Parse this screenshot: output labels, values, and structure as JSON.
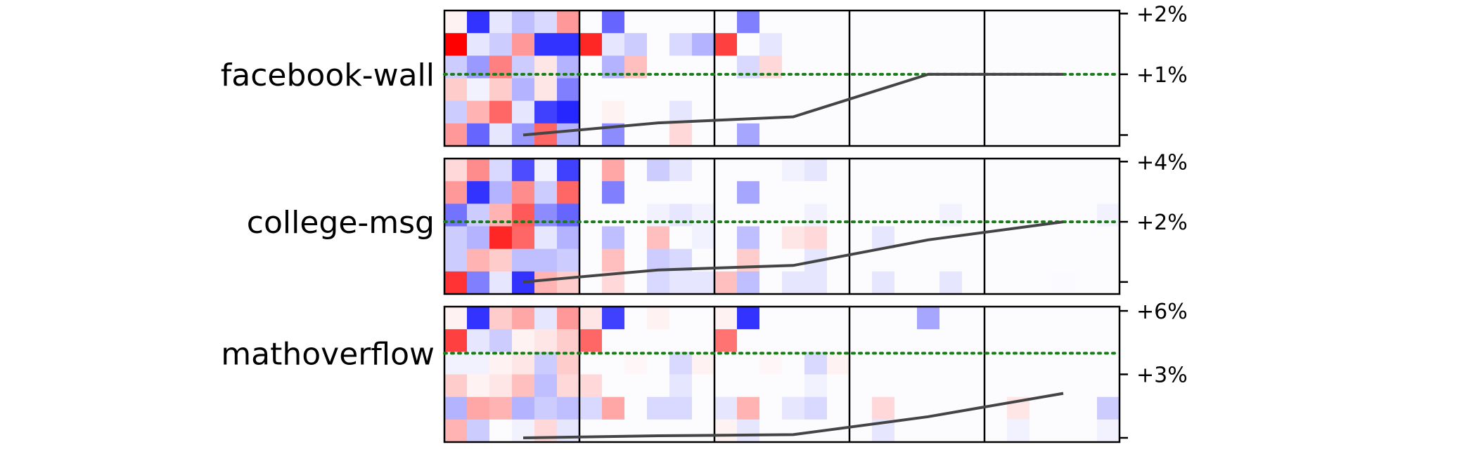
{
  "chart_data": {
    "type": "heatmap",
    "ylabel": "",
    "xlabel": "",
    "panel_count": 5,
    "heatmap_range": [
      -1,
      1
    ],
    "colors": {
      "positive": "#ff0000",
      "negative": "#0000ff",
      "trend": "#444444",
      "reference": "#1a7a1a"
    },
    "rows": [
      {
        "name": "facebook-wall",
        "y_ticks": [
          "+2%",
          "+1%",
          ""
        ],
        "y_tick_values": [
          2,
          1,
          0
        ],
        "ylim": [
          -0.18,
          2.05
        ],
        "reference_line": 1.0,
        "trend": [
          0.0,
          0.2,
          0.3,
          1.0,
          1.0
        ],
        "heatmaps": [
          [
            [
              0.05,
              -0.8,
              -0.1,
              -0.25,
              -0.15,
              0.4
            ],
            [
              1.0,
              -0.1,
              -0.2,
              0.4,
              -0.8,
              -0.8
            ],
            [
              -0.2,
              -0.4,
              0.5,
              -0.2,
              0.1,
              -0.3
            ],
            [
              0.2,
              -0.05,
              0.2,
              -0.3,
              0.1,
              -0.5
            ],
            [
              -0.2,
              0.3,
              0.6,
              -0.1,
              -0.75,
              -0.85
            ],
            [
              0.4,
              -0.6,
              -0.1,
              -0.4,
              0.6,
              -0.3
            ]
          ],
          [
            [
              0,
              -0.6,
              0,
              0,
              0,
              0
            ],
            [
              0.85,
              -0.1,
              -0.2,
              0,
              -0.15,
              -0.3
            ],
            [
              0,
              -0.3,
              0.25,
              0,
              0,
              0
            ],
            [
              0,
              0,
              0,
              0,
              0,
              0
            ],
            [
              0,
              0.05,
              0,
              0,
              -0.1,
              0
            ],
            [
              0,
              -0.45,
              0,
              0,
              0.15,
              0
            ]
          ],
          [
            [
              0,
              -0.5,
              0,
              0,
              0,
              0
            ],
            [
              0.75,
              0,
              -0.1,
              0,
              0,
              0
            ],
            [
              0,
              -0.15,
              0.15,
              0,
              0,
              0
            ],
            [
              0,
              0,
              0,
              0,
              0,
              0
            ],
            [
              0,
              0,
              0,
              0,
              0,
              0
            ],
            [
              0,
              -0.35,
              0,
              0,
              0,
              0
            ]
          ],
          [
            [
              0,
              0,
              0,
              0,
              0,
              0
            ],
            [
              0,
              0,
              0,
              0,
              0,
              0
            ],
            [
              0,
              0,
              0,
              0,
              0,
              0
            ],
            [
              0,
              0,
              0,
              0,
              0,
              0
            ],
            [
              0,
              0,
              0,
              0,
              0,
              0
            ],
            [
              0,
              0,
              0,
              0,
              0,
              0
            ]
          ],
          [
            [
              0,
              0,
              0,
              0,
              0,
              0
            ],
            [
              0,
              0,
              0,
              0,
              0,
              0
            ],
            [
              0,
              0,
              0,
              0,
              0,
              0
            ],
            [
              0,
              0,
              0,
              0,
              0,
              0
            ],
            [
              0,
              0,
              0,
              0,
              0,
              0
            ],
            [
              0,
              0,
              0,
              0,
              0,
              0
            ]
          ]
        ]
      },
      {
        "name": "college-msg",
        "y_ticks": [
          "+4%",
          "+2%",
          ""
        ],
        "y_tick_values": [
          4,
          2,
          0
        ],
        "ylim": [
          -0.4,
          4.1
        ],
        "reference_line": 2.0,
        "trend": [
          0.0,
          0.4,
          0.55,
          1.4,
          2.0
        ],
        "heatmaps": [
          [
            [
              0.15,
              0.45,
              -0.15,
              -0.7,
              -0.05,
              -0.75
            ],
            [
              0.4,
              -0.8,
              -0.3,
              0.45,
              -0.2,
              0.6
            ],
            [
              -0.55,
              -0.2,
              0.3,
              0.65,
              -0.45,
              -0.6
            ],
            [
              -0.2,
              -0.3,
              0.85,
              0.6,
              -0.1,
              -0.3
            ],
            [
              -0.2,
              0.3,
              0.2,
              -0.25,
              -0.25,
              -0.2
            ],
            [
              0.8,
              -0.5,
              -0.1,
              -0.8,
              0.3,
              0.2
            ]
          ],
          [
            [
              0,
              0.35,
              0,
              -0.2,
              -0.1,
              0
            ],
            [
              0,
              -0.5,
              0,
              0,
              0,
              0
            ],
            [
              0,
              0,
              0,
              -0.05,
              -0.1,
              -0.05
            ],
            [
              0,
              -0.25,
              0,
              0.25,
              0,
              -0.05
            ],
            [
              0,
              0.25,
              0,
              -0.2,
              -0.15,
              0
            ],
            [
              0,
              0.15,
              0,
              -0.15,
              -0.1,
              -0.1
            ]
          ],
          [
            [
              0,
              0,
              0,
              -0.05,
              -0.1,
              0
            ],
            [
              0,
              -0.35,
              0,
              0,
              0,
              0
            ],
            [
              0,
              0,
              0,
              0,
              -0.05,
              0
            ],
            [
              0,
              -0.25,
              0,
              0.1,
              0.15,
              0
            ],
            [
              0,
              0.2,
              0,
              0,
              -0.1,
              0
            ],
            [
              0.25,
              -0.25,
              0,
              -0.1,
              -0.1,
              0
            ]
          ],
          [
            [
              0,
              0,
              0,
              0,
              0,
              0
            ],
            [
              0,
              0,
              0,
              0,
              0,
              0
            ],
            [
              0,
              0,
              0,
              0,
              -0.05,
              0
            ],
            [
              0,
              -0.1,
              0,
              0,
              0,
              0
            ],
            [
              0,
              0,
              0,
              0,
              0,
              0
            ],
            [
              0,
              -0.1,
              0,
              0,
              -0.1,
              0
            ]
          ],
          [
            [
              0,
              0,
              0,
              0,
              0,
              0
            ],
            [
              0,
              0,
              0,
              0,
              0,
              0
            ],
            [
              0,
              0,
              0,
              0,
              0,
              -0.05
            ],
            [
              0,
              0,
              0,
              0,
              0,
              0
            ],
            [
              0,
              0,
              0,
              0,
              0,
              0
            ],
            [
              0,
              0,
              0,
              -0.02,
              0,
              0
            ]
          ]
        ]
      },
      {
        "name": "mathoverflow",
        "y_ticks": [
          "+6%",
          "+3%",
          ""
        ],
        "y_tick_values": [
          6,
          3,
          0
        ],
        "ylim": [
          -0.2,
          6.2
        ],
        "reference_line": 4.0,
        "trend": [
          0.0,
          0.1,
          0.15,
          1.0,
          2.1
        ],
        "heatmaps": [
          [
            [
              0.05,
              -0.8,
              0.2,
              0.35,
              -0.1,
              0.4
            ],
            [
              0.75,
              -0.1,
              -0.2,
              0.05,
              0.1,
              0.2
            ],
            [
              -0.05,
              -0.05,
              0.05,
              0.1,
              -0.2,
              0.2
            ],
            [
              0.2,
              0.05,
              0.1,
              0.25,
              -0.25,
              0.15
            ],
            [
              -0.3,
              0.35,
              0.3,
              -0.3,
              -0.2,
              -0.25
            ],
            [
              0.3,
              -0.2,
              0,
              -0.05,
              0.15,
              -0.1
            ]
          ],
          [
            [
              0.1,
              -0.75,
              0,
              0.05,
              0,
              0
            ],
            [
              0.6,
              0,
              0,
              0,
              0,
              0
            ],
            [
              0,
              0,
              0.03,
              0,
              -0.15,
              0.05
            ],
            [
              0.15,
              0,
              0,
              0,
              -0.1,
              0
            ],
            [
              -0.15,
              0.35,
              0,
              -0.15,
              -0.15,
              0
            ],
            [
              0,
              0,
              0,
              0,
              0,
              0
            ]
          ],
          [
            [
              0.05,
              -0.8,
              0,
              0,
              0,
              0
            ],
            [
              0.55,
              0,
              0,
              0,
              0,
              0
            ],
            [
              0,
              0,
              0.03,
              0,
              -0.15,
              0.05
            ],
            [
              0,
              0,
              0,
              0,
              -0.05,
              0
            ],
            [
              -0.1,
              0.3,
              0,
              -0.1,
              -0.15,
              0
            ],
            [
              0.05,
              -0.1,
              0,
              0,
              0,
              0
            ]
          ],
          [
            [
              0,
              0,
              0,
              -0.35,
              0,
              0
            ],
            [
              0,
              0,
              0,
              0,
              0,
              0
            ],
            [
              0,
              0,
              0,
              0,
              0,
              0
            ],
            [
              0,
              0,
              0,
              0,
              0,
              0
            ],
            [
              0,
              0.15,
              0,
              0,
              0,
              0
            ],
            [
              0,
              -0.1,
              0,
              0,
              0,
              0
            ]
          ],
          [
            [
              0,
              0,
              0,
              0,
              0,
              0
            ],
            [
              0,
              0,
              0,
              0,
              0,
              0
            ],
            [
              0,
              0,
              0,
              0,
              0,
              0
            ],
            [
              0,
              0,
              0,
              0,
              0,
              0
            ],
            [
              0,
              0.1,
              0,
              0,
              0,
              -0.2
            ],
            [
              0,
              -0.05,
              0,
              0,
              0,
              -0.05
            ]
          ]
        ]
      }
    ]
  }
}
